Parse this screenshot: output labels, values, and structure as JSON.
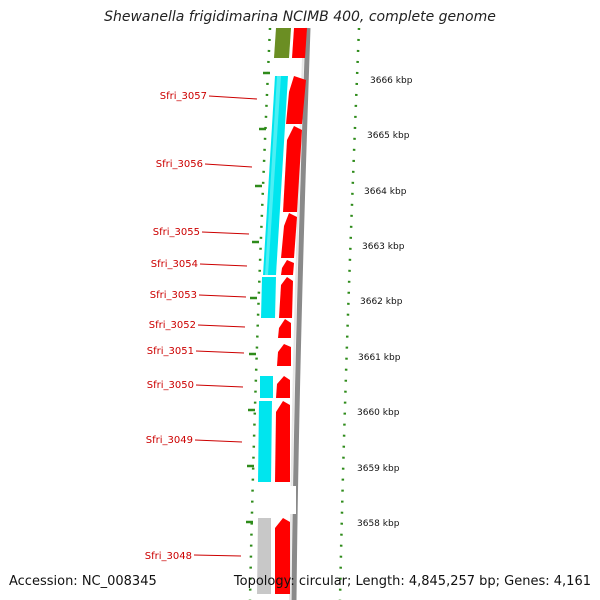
{
  "title": "Shewanella frigidimarina NCIMB 400, complete genome",
  "accession": "Accession: NC_008345",
  "summary": "Topology: circular; Length: 4,845,257 bp; Genes: 4,161",
  "ticks": [
    "3666 kbp",
    "3665 kbp",
    "3664 kbp",
    "3663 kbp",
    "3662 kbp",
    "3661 kbp",
    "3660 kbp",
    "3659 kbp",
    "3658 kbp"
  ],
  "genes": [
    "Sfri_3057",
    "Sfri_3056",
    "Sfri_3055",
    "Sfri_3054",
    "Sfri_3053",
    "Sfri_3052",
    "Sfri_3051",
    "Sfri_3050",
    "Sfri_3049",
    "Sfri_3048"
  ],
  "colors": {
    "forward_cds": "#ff0000",
    "reverse_cds": "#00e5ee",
    "olive_feature": "#6b8e23",
    "grey_feature": "#c8c8c8",
    "backbone": "#808080",
    "tick_marks": "#2e8b1a",
    "label_line": "#cc0000",
    "label_text": "#cc0000"
  }
}
